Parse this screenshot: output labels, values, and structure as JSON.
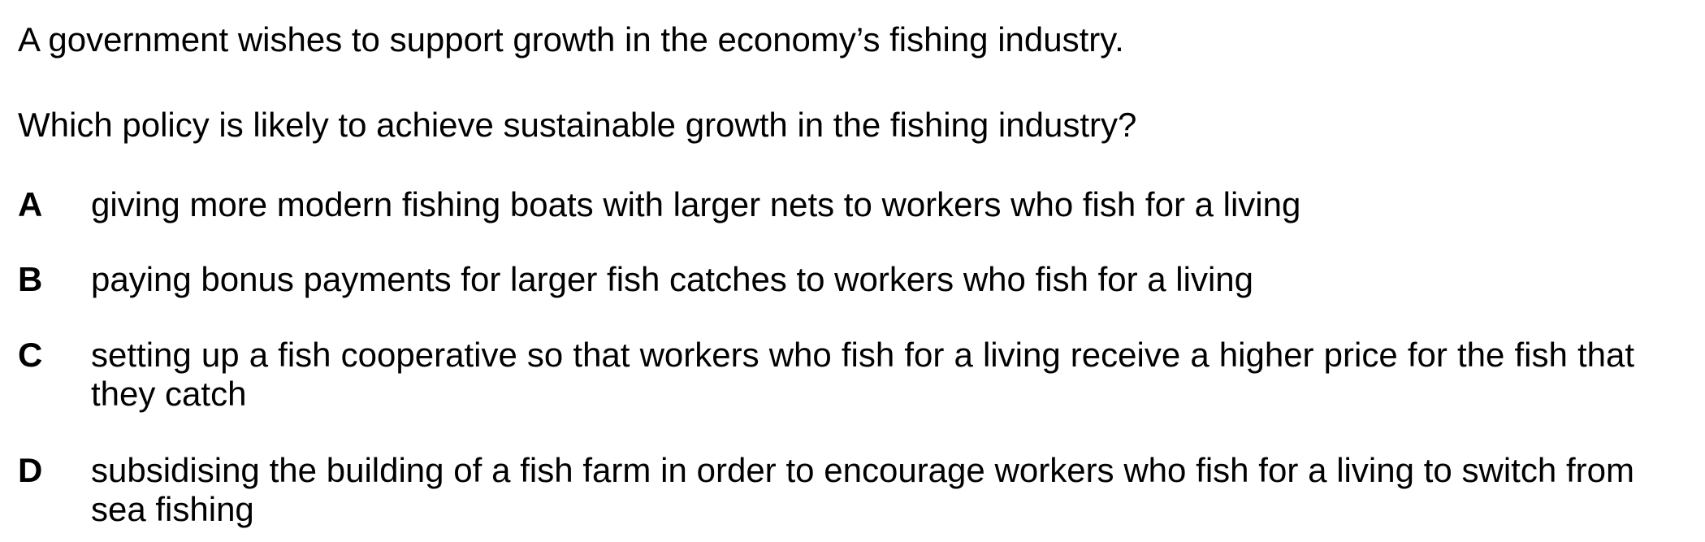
{
  "question": {
    "stem_intro": "A government wishes to support growth in the economy’s fishing industry.",
    "stem_prompt": "Which policy is likely to achieve sustainable growth in the fishing industry?"
  },
  "options": [
    {
      "letter": "A",
      "text": "giving more modern fishing boats with larger nets to workers who fish for a living"
    },
    {
      "letter": "B",
      "text": "paying bonus payments for larger fish catches to workers who fish for a living"
    },
    {
      "letter": "C",
      "text": "setting up a fish cooperative so that workers who fish for a living receive a higher price for the fish that they catch"
    },
    {
      "letter": "D",
      "text": "subsidising the building of a fish farm in order to encourage workers who fish for a living to switch from sea fishing"
    }
  ]
}
